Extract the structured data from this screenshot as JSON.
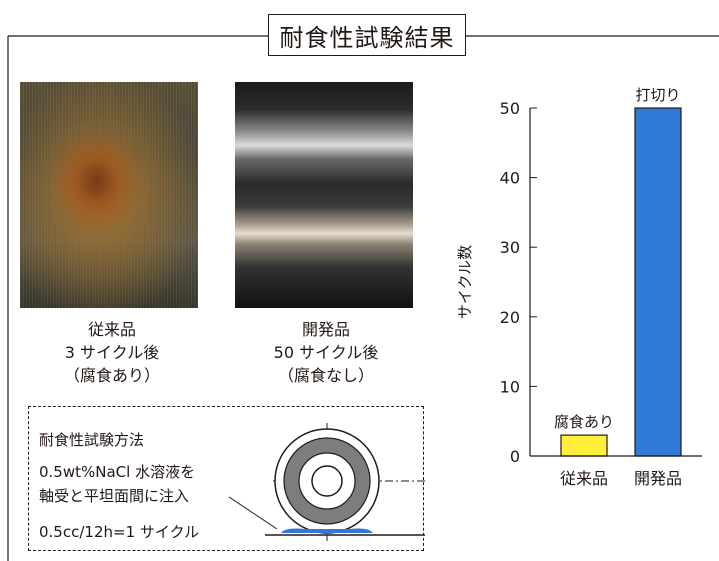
{
  "page": {
    "title": "耐食性試験結果"
  },
  "photos": [
    {
      "caption": [
        "従来品",
        "3 サイクル後",
        "（腐食あり）"
      ]
    },
    {
      "caption": [
        "開発品",
        "50 サイクル後",
        "（腐食なし）"
      ]
    }
  ],
  "method": {
    "title": "耐食性試験方法",
    "line1": "0.5wt%NaCl 水溶液を",
    "line2": "軸受と平坦面間に注入",
    "line3": "0.5cc/12h=1 サイクル"
  },
  "colors": {
    "conventional_bar": "#ffee3a",
    "developed_bar": "#2f7ad6",
    "bearing_ring": "#7d7d7d",
    "saltwater": "#2f7ad6"
  },
  "chart_data": {
    "type": "bar",
    "categories": [
      "従来品",
      "開発品"
    ],
    "values": [
      3,
      50
    ],
    "ylabel": "サイクル数",
    "ylim": [
      0,
      50
    ],
    "yticks": [
      0,
      10,
      20,
      30,
      40,
      50
    ],
    "grid": false,
    "annotations": [
      "腐食あり",
      "打切り"
    ]
  }
}
